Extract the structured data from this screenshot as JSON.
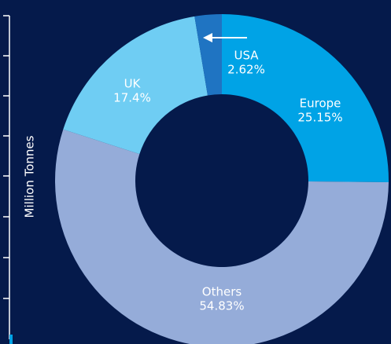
{
  "chart_data": {
    "type": "donut",
    "y_label": "Million Tonnes",
    "categories": [
      "Europe",
      "Others",
      "UK",
      "USA"
    ],
    "values": [
      25.15,
      54.83,
      17.4,
      2.62
    ],
    "value_labels": [
      "25.15%",
      "54.83%",
      "17.4%",
      "2.62%"
    ],
    "colors": [
      "#00a3e6",
      "#95acd9",
      "#6fcdf3",
      "#1f74c2"
    ]
  }
}
